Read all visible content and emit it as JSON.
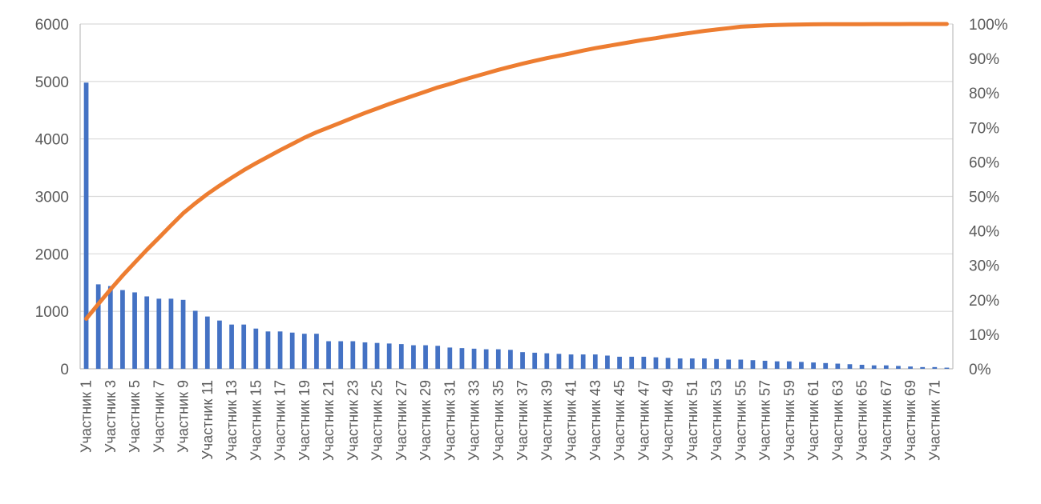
{
  "chart_data": {
    "type": "bar",
    "title": "",
    "xlabel": "",
    "ylabel": "",
    "ylim": [
      0,
      6000
    ],
    "y_ticks": [
      "0",
      "1000",
      "2000",
      "3000",
      "4000",
      "5000",
      "6000"
    ],
    "y2lim": [
      0,
      100
    ],
    "y2_ticks": [
      "0%",
      "10%",
      "20%",
      "30%",
      "40%",
      "50%",
      "60%",
      "70%",
      "80%",
      "90%",
      "100%"
    ],
    "grid": true,
    "legend": "none",
    "colors": {
      "bars": "#4472c4",
      "line": "#ed7d31",
      "grid": "#d9d9d9",
      "text": "#595959"
    },
    "categories": [
      "Участник 1",
      "Участник 2",
      "Участник 3",
      "Участник 4",
      "Участник 5",
      "Участник 6",
      "Участник 7",
      "Участник 8",
      "Участник 9",
      "Участник 10",
      "Участник 11",
      "Участник 12",
      "Участник 13",
      "Участник 14",
      "Участник 15",
      "Участник 16",
      "Участник 17",
      "Участник 18",
      "Участник 19",
      "Участник 20",
      "Участник 21",
      "Участник 22",
      "Участник 23",
      "Участник 24",
      "Участник 25",
      "Участник 26",
      "Участник 27",
      "Участник 28",
      "Участник 29",
      "Участник 30",
      "Участник 31",
      "Участник 32",
      "Участник 33",
      "Участник 34",
      "Участник 35",
      "Участник 36",
      "Участник 37",
      "Участник 38",
      "Участник 39",
      "Участник 40",
      "Участник 41",
      "Участник 42",
      "Участник 43",
      "Участник 44",
      "Участник 45",
      "Участник 46",
      "Участник 47",
      "Участник 48",
      "Участник 49",
      "Участник 50",
      "Участник 51",
      "Участник 52",
      "Участник 53",
      "Участник 54",
      "Участник 55",
      "Участник 56",
      "Участник 57",
      "Участник 58",
      "Участник 59",
      "Участник 60",
      "Участник 61",
      "Участник 62",
      "Участник 63",
      "Участник 64",
      "Участник 65",
      "Участник 66",
      "Участник 67",
      "Участник 68",
      "Участник 69",
      "Участник 70",
      "Участник 71",
      "Участник 72"
    ],
    "series": [
      {
        "type": "bar",
        "axis": "left",
        "values": [
          4980,
          1470,
          1440,
          1370,
          1330,
          1260,
          1220,
          1220,
          1200,
          1010,
          910,
          840,
          770,
          770,
          700,
          650,
          650,
          630,
          610,
          610,
          480,
          480,
          480,
          460,
          450,
          440,
          430,
          410,
          410,
          400,
          370,
          360,
          350,
          340,
          340,
          330,
          290,
          280,
          270,
          260,
          250,
          250,
          250,
          230,
          210,
          210,
          210,
          200,
          190,
          180,
          180,
          180,
          170,
          160,
          160,
          150,
          140,
          130,
          130,
          120,
          110,
          100,
          90,
          80,
          70,
          60,
          60,
          50,
          40,
          30,
          30,
          20
        ]
      },
      {
        "type": "line",
        "axis": "right",
        "values": [
          14.5,
          18.8,
          23.0,
          27.0,
          30.8,
          34.5,
          38.0,
          41.6,
          45.1,
          48.0,
          50.7,
          53.1,
          55.4,
          57.6,
          59.6,
          61.5,
          63.4,
          65.2,
          67.0,
          68.6,
          70.0,
          71.4,
          72.8,
          74.2,
          75.5,
          76.8,
          78.0,
          79.2,
          80.4,
          81.6,
          82.6,
          83.7,
          84.7,
          85.7,
          86.7,
          87.6,
          88.5,
          89.3,
          90.1,
          90.8,
          91.5,
          92.3,
          93.0,
          93.6,
          94.2,
          94.8,
          95.4,
          95.9,
          96.5,
          97.0,
          97.5,
          98.0,
          98.4,
          98.8,
          99.2,
          99.4,
          99.6,
          99.7,
          99.8,
          99.85,
          99.9,
          99.92,
          99.94,
          99.95,
          99.96,
          99.97,
          99.98,
          99.98,
          99.99,
          99.99,
          100.0,
          100.0
        ]
      }
    ]
  }
}
